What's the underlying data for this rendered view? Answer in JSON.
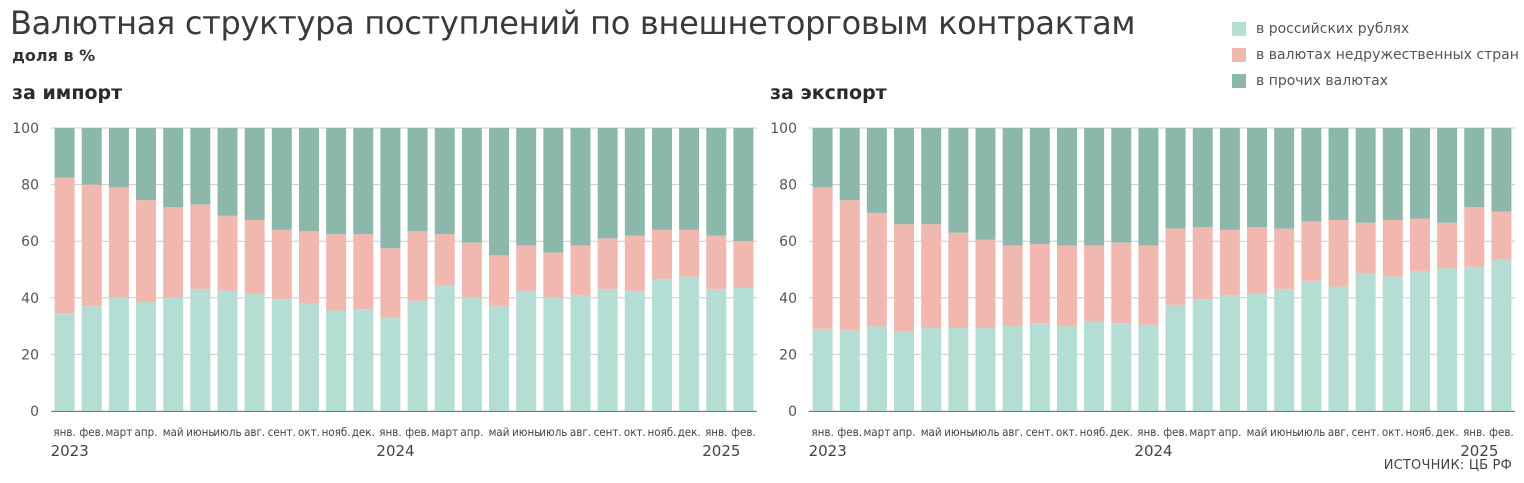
{
  "title": "Валютная структура поступлений по внешнеторговым контрактам",
  "subtitle": "доля в %",
  "source": "ИСТОЧНИК: ЦБ РФ",
  "colors": {
    "rub": "#b4ddd3",
    "unfriendly": "#f0b8ae",
    "other": "#8cb8ac",
    "gridline": "#cccccc",
    "axis": "#777777"
  },
  "legend": [
    {
      "label": "в российских рублях",
      "color": "#b4ddd3"
    },
    {
      "label": "в валютах недружественных стран",
      "color": "#f0b8ae"
    },
    {
      "label": "в прочих валютах",
      "color": "#8cb8ac"
    }
  ],
  "chart_data": [
    {
      "type": "bar",
      "stacked": true,
      "title": "за импорт",
      "ylim": [
        0,
        100
      ],
      "yticks": [
        0,
        20,
        40,
        60,
        80,
        100
      ],
      "grid": true,
      "categories": [
        "янв.",
        "фев.",
        "март",
        "апр.",
        "май",
        "июнь",
        "июль",
        "авг.",
        "сент.",
        "окт.",
        "нояб.",
        "дек.",
        "янв.",
        "фев.",
        "март",
        "апр.",
        "май",
        "июнь",
        "июль",
        "авг.",
        "сент.",
        "окт.",
        "нояб.",
        "дек.",
        "янв.",
        "фев."
      ],
      "year_labels": [
        {
          "index": 0,
          "label": "2023"
        },
        {
          "index": 12,
          "label": "2024"
        },
        {
          "index": 24,
          "label": "2025"
        }
      ],
      "series": [
        {
          "name": "в российских рублях",
          "values": [
            34.5,
            37,
            40,
            38.5,
            40,
            43,
            42.5,
            41.5,
            39.5,
            38,
            35.5,
            36,
            33,
            39,
            44.5,
            40,
            37,
            42.5,
            40,
            41,
            43,
            42.5,
            46.5,
            47.5,
            43,
            43.5
          ]
        },
        {
          "name": "в валютах недружественных стран",
          "values": [
            48,
            43,
            39,
            36,
            32,
            30,
            26.5,
            26,
            24.5,
            25.5,
            27,
            26.5,
            24.5,
            24.5,
            18,
            19.5,
            18,
            16,
            16,
            17.5,
            18,
            19.5,
            17.5,
            16.5,
            19,
            16.5
          ]
        },
        {
          "name": "в прочих валютах",
          "values": [
            17.5,
            20,
            21,
            25.5,
            28,
            27,
            31,
            32.5,
            36,
            36.5,
            37.5,
            37.5,
            42.5,
            36.5,
            37.5,
            40.5,
            45,
            41.5,
            44,
            41.5,
            39,
            38,
            36,
            36,
            38,
            40
          ]
        }
      ]
    },
    {
      "type": "bar",
      "stacked": true,
      "title": "за экспорт",
      "ylim": [
        0,
        100
      ],
      "yticks": [
        0,
        20,
        40,
        60,
        80,
        100
      ],
      "grid": true,
      "categories": [
        "янв.",
        "фев.",
        "март",
        "апр.",
        "май",
        "июнь",
        "июль",
        "авг.",
        "сент.",
        "окт.",
        "нояб.",
        "дек.",
        "янв.",
        "фев.",
        "март",
        "апр.",
        "май",
        "июнь",
        "июль",
        "авг.",
        "сент.",
        "окт.",
        "нояб.",
        "дек.",
        "янв.",
        "фев."
      ],
      "year_labels": [
        {
          "index": 0,
          "label": "2023"
        },
        {
          "index": 12,
          "label": "2024"
        },
        {
          "index": 24,
          "label": "2025"
        }
      ],
      "series": [
        {
          "name": "в российских рублях",
          "values": [
            29,
            28.5,
            30,
            28,
            29.5,
            29.5,
            29.5,
            30,
            31,
            30,
            31.5,
            31,
            30.5,
            37.5,
            39.5,
            41,
            41.5,
            43,
            46,
            44,
            48.5,
            47.5,
            49.5,
            50.5,
            51,
            53.5
          ]
        },
        {
          "name": "в валютах недружественных стран",
          "values": [
            50,
            46,
            40,
            38,
            36.5,
            33.5,
            31,
            28.5,
            28,
            28.5,
            27,
            28.5,
            28,
            27,
            25.5,
            23,
            23.5,
            21.5,
            21,
            23.5,
            18,
            20,
            18.5,
            16,
            21,
            17
          ]
        },
        {
          "name": "в прочих валютах",
          "values": [
            21,
            25.5,
            30,
            34,
            34,
            37,
            39.5,
            41.5,
            41,
            41.5,
            41.5,
            40.5,
            41.5,
            35.5,
            35,
            36,
            35,
            35.5,
            33,
            32.5,
            33.5,
            32.5,
            32,
            33.5,
            28,
            29.5
          ]
        }
      ]
    }
  ]
}
